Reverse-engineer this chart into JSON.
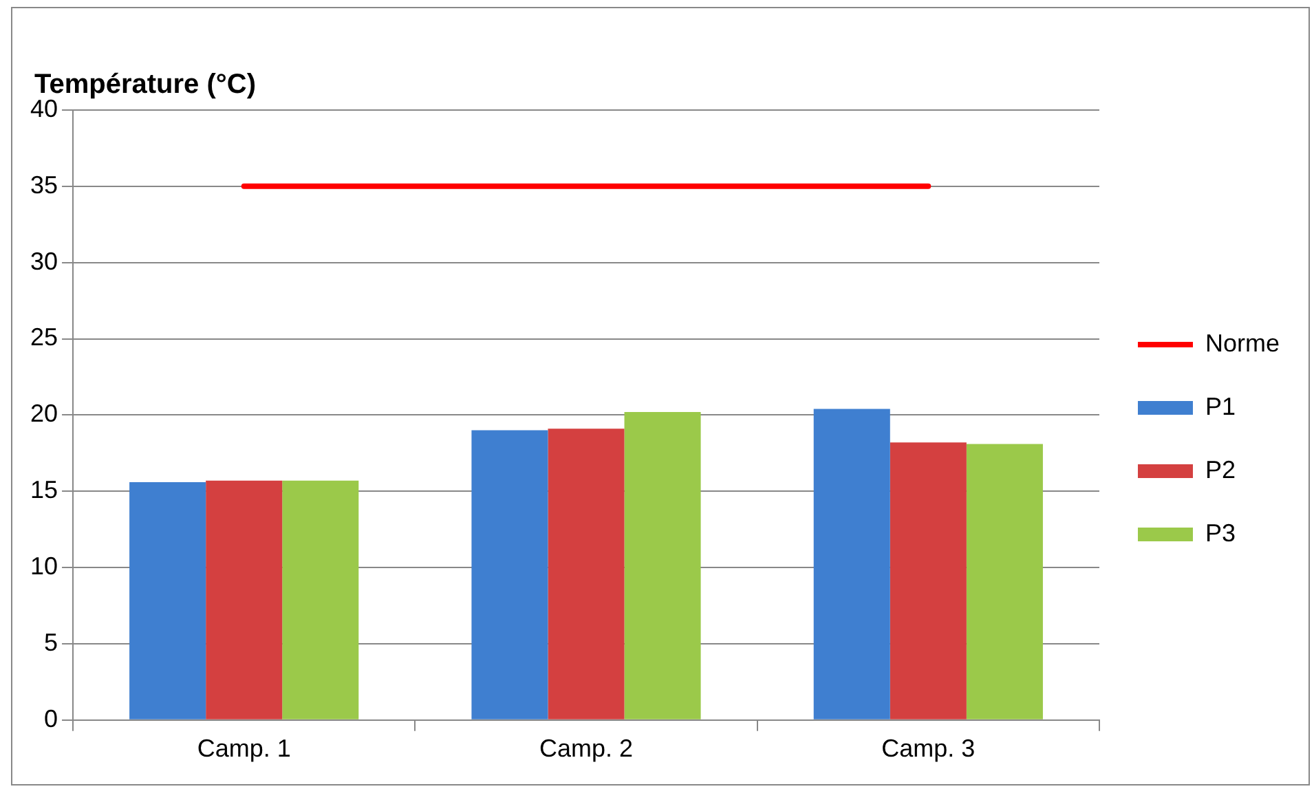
{
  "chart_data": {
    "type": "bar",
    "ylabel": "Température (°C)",
    "categories": [
      "Camp. 1",
      "Camp. 2",
      "Camp. 3"
    ],
    "series": [
      {
        "name": "P1",
        "color": "#3f7fd0",
        "values": [
          15.6,
          19.0,
          20.4
        ]
      },
      {
        "name": "P2",
        "color": "#d44040",
        "values": [
          15.7,
          19.1,
          18.2
        ]
      },
      {
        "name": "P3",
        "color": "#9bc94a",
        "values": [
          15.7,
          20.2,
          18.1
        ]
      },
      {
        "name": "Norme",
        "type": "line",
        "color": "#ff0000",
        "values": [
          35,
          35,
          35
        ],
        "marker": "none"
      }
    ],
    "ylim": [
      0,
      40
    ],
    "yticks": [
      0,
      5,
      10,
      15,
      20,
      25,
      30,
      35,
      40
    ],
    "grid": "y",
    "legend": "right"
  }
}
